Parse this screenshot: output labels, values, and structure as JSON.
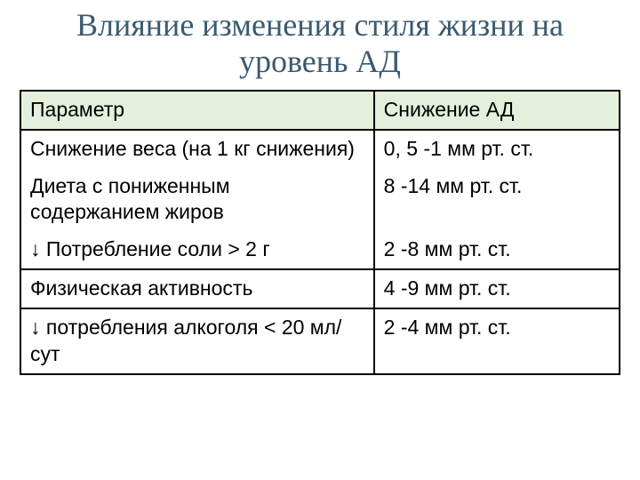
{
  "title": "Влияние изменения стиля жизни на уровень АД",
  "title_color": "#3a5a70",
  "title_fontsize": 36,
  "table": {
    "header_bg": "#e4f0db",
    "border_color": "#000000",
    "cell_fontsize": 23,
    "columns": [
      {
        "label": "Параметр",
        "width_pct": 59
      },
      {
        "label": "Снижение АД",
        "width_pct": 41
      }
    ],
    "group1": {
      "r1": {
        "param": "Снижение веса (на 1 кг снижения)",
        "value": "0, 5 -1 мм рт. ст."
      },
      "r2": {
        "param": "Диета с пониженным содержанием жиров",
        "value": "8 -14 мм рт. ст."
      },
      "r3": {
        "param": "↓ Потребление соли > 2 г",
        "value": "2 -8 мм рт. ст."
      }
    },
    "row_activity": {
      "param": "Физическая активность",
      "value": "4 -9 мм рт. ст."
    },
    "row_alcohol": {
      "param": "↓ потребления алкоголя < 20 мл/сут",
      "value": "2 -4 мм рт. ст."
    }
  },
  "background_color": "#ffffff"
}
